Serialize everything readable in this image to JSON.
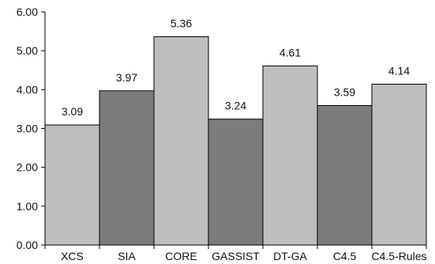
{
  "chart_data": {
    "type": "bar",
    "title": "",
    "xlabel": "",
    "ylabel": "",
    "categories": [
      "XCS",
      "SIA",
      "CORE",
      "GASSIST",
      "DT-GA",
      "C4.5",
      "C4.5-Rules"
    ],
    "values": [
      3.09,
      3.97,
      5.36,
      3.24,
      4.61,
      3.59,
      4.14
    ],
    "value_labels": [
      "3.09",
      "3.97",
      "5.36",
      "3.24",
      "4.61",
      "3.59",
      "4.14"
    ],
    "ylim": [
      0,
      6
    ],
    "yticks": [
      0,
      1,
      2,
      3,
      4,
      5,
      6
    ],
    "ytick_labels": [
      "0.00",
      "1.00",
      "2.00",
      "3.00",
      "4.00",
      "5.00",
      "6.00"
    ],
    "grid": false,
    "bar_colors": [
      "#bebebe",
      "#7c7c7c",
      "#bebebe",
      "#7c7c7c",
      "#bebebe",
      "#7c7c7c",
      "#bebebe"
    ]
  }
}
